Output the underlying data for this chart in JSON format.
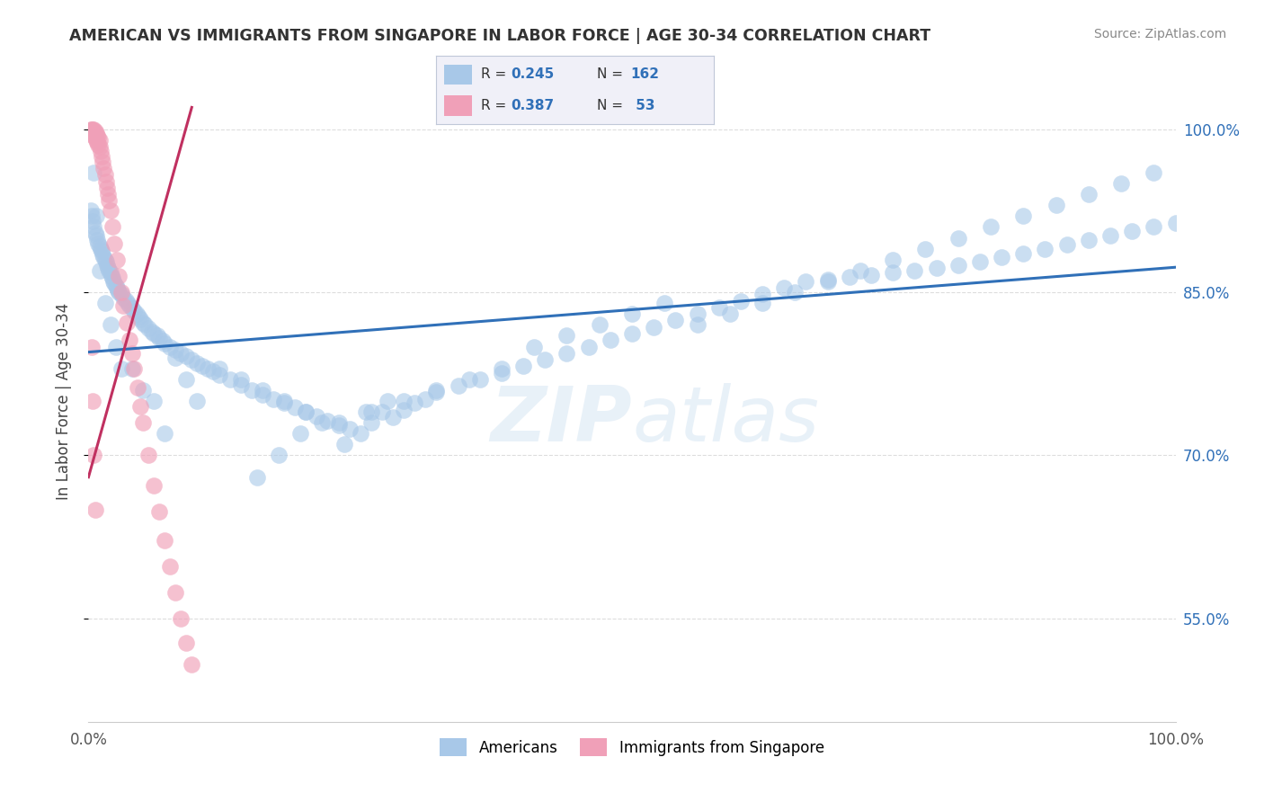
{
  "title": "AMERICAN VS IMMIGRANTS FROM SINGAPORE IN LABOR FORCE | AGE 30-34 CORRELATION CHART",
  "source": "Source: ZipAtlas.com",
  "ylabel": "In Labor Force | Age 30-34",
  "yright_labels": [
    "55.0%",
    "70.0%",
    "85.0%",
    "100.0%"
  ],
  "yright_values": [
    0.55,
    0.7,
    0.85,
    1.0
  ],
  "xlim": [
    0.0,
    1.0
  ],
  "ylim": [
    0.455,
    1.045
  ],
  "color_american": "#a8c8e8",
  "color_singapore": "#f0a0b8",
  "line_color_american": "#3070b8",
  "line_color_singapore": "#c03060",
  "watermark": "ZIPAtlas",
  "background_color": "#ffffff",
  "grid_color": "#dddddd",
  "legend_bg": "#f0f0f8",
  "legend_border": "#c0c8d8",
  "american_x": [
    0.002,
    0.003,
    0.004,
    0.005,
    0.006,
    0.007,
    0.008,
    0.009,
    0.01,
    0.011,
    0.012,
    0.013,
    0.014,
    0.015,
    0.016,
    0.017,
    0.018,
    0.019,
    0.02,
    0.021,
    0.022,
    0.023,
    0.024,
    0.025,
    0.026,
    0.027,
    0.028,
    0.03,
    0.032,
    0.034,
    0.036,
    0.038,
    0.04,
    0.042,
    0.044,
    0.046,
    0.048,
    0.05,
    0.052,
    0.055,
    0.058,
    0.06,
    0.063,
    0.065,
    0.068,
    0.07,
    0.075,
    0.08,
    0.085,
    0.09,
    0.095,
    0.1,
    0.105,
    0.11,
    0.115,
    0.12,
    0.13,
    0.14,
    0.15,
    0.16,
    0.17,
    0.18,
    0.19,
    0.2,
    0.21,
    0.22,
    0.23,
    0.24,
    0.25,
    0.26,
    0.27,
    0.28,
    0.29,
    0.3,
    0.31,
    0.32,
    0.34,
    0.36,
    0.38,
    0.4,
    0.42,
    0.44,
    0.46,
    0.48,
    0.5,
    0.52,
    0.54,
    0.56,
    0.58,
    0.6,
    0.62,
    0.64,
    0.66,
    0.68,
    0.7,
    0.72,
    0.74,
    0.76,
    0.78,
    0.8,
    0.82,
    0.84,
    0.86,
    0.88,
    0.9,
    0.92,
    0.94,
    0.96,
    0.98,
    1.0,
    0.005,
    0.007,
    0.01,
    0.015,
    0.02,
    0.025,
    0.03,
    0.04,
    0.05,
    0.06,
    0.07,
    0.08,
    0.09,
    0.1,
    0.12,
    0.14,
    0.16,
    0.18,
    0.2,
    0.23,
    0.26,
    0.29,
    0.32,
    0.35,
    0.38,
    0.41,
    0.44,
    0.47,
    0.5,
    0.53,
    0.56,
    0.59,
    0.62,
    0.65,
    0.68,
    0.71,
    0.74,
    0.77,
    0.8,
    0.83,
    0.86,
    0.89,
    0.92,
    0.95,
    0.98,
    0.155,
    0.175,
    0.195,
    0.215,
    0.235,
    0.255,
    0.275
  ],
  "american_y": [
    0.925,
    0.92,
    0.915,
    0.91,
    0.905,
    0.902,
    0.898,
    0.895,
    0.892,
    0.89,
    0.888,
    0.885,
    0.882,
    0.88,
    0.878,
    0.875,
    0.872,
    0.87,
    0.868,
    0.865,
    0.863,
    0.86,
    0.858,
    0.856,
    0.854,
    0.852,
    0.85,
    0.848,
    0.845,
    0.843,
    0.84,
    0.838,
    0.835,
    0.833,
    0.83,
    0.828,
    0.825,
    0.822,
    0.82,
    0.817,
    0.814,
    0.812,
    0.81,
    0.808,
    0.805,
    0.803,
    0.8,
    0.797,
    0.794,
    0.791,
    0.788,
    0.785,
    0.782,
    0.78,
    0.777,
    0.774,
    0.77,
    0.765,
    0.76,
    0.756,
    0.752,
    0.748,
    0.744,
    0.74,
    0.736,
    0.732,
    0.728,
    0.724,
    0.72,
    0.73,
    0.74,
    0.735,
    0.742,
    0.748,
    0.752,
    0.758,
    0.764,
    0.77,
    0.776,
    0.782,
    0.788,
    0.794,
    0.8,
    0.806,
    0.812,
    0.818,
    0.824,
    0.83,
    0.836,
    0.842,
    0.848,
    0.854,
    0.86,
    0.862,
    0.864,
    0.866,
    0.868,
    0.87,
    0.872,
    0.875,
    0.878,
    0.882,
    0.886,
    0.89,
    0.894,
    0.898,
    0.902,
    0.906,
    0.91,
    0.914,
    0.96,
    0.92,
    0.87,
    0.84,
    0.82,
    0.8,
    0.78,
    0.78,
    0.76,
    0.75,
    0.72,
    0.79,
    0.77,
    0.75,
    0.78,
    0.77,
    0.76,
    0.75,
    0.74,
    0.73,
    0.74,
    0.75,
    0.76,
    0.77,
    0.78,
    0.8,
    0.81,
    0.82,
    0.83,
    0.84,
    0.82,
    0.83,
    0.84,
    0.85,
    0.86,
    0.87,
    0.88,
    0.89,
    0.9,
    0.91,
    0.92,
    0.93,
    0.94,
    0.95,
    0.96,
    0.68,
    0.7,
    0.72,
    0.73,
    0.71,
    0.74,
    0.75
  ],
  "singapore_x": [
    0.002,
    0.003,
    0.003,
    0.004,
    0.004,
    0.005,
    0.005,
    0.006,
    0.006,
    0.007,
    0.007,
    0.008,
    0.008,
    0.009,
    0.009,
    0.01,
    0.01,
    0.011,
    0.012,
    0.013,
    0.014,
    0.015,
    0.016,
    0.017,
    0.018,
    0.019,
    0.02,
    0.022,
    0.024,
    0.026,
    0.028,
    0.03,
    0.032,
    0.035,
    0.038,
    0.04,
    0.042,
    0.045,
    0.048,
    0.05,
    0.055,
    0.06,
    0.065,
    0.07,
    0.075,
    0.08,
    0.085,
    0.09,
    0.095,
    0.003,
    0.004,
    0.005,
    0.006
  ],
  "singapore_y": [
    1.0,
    1.0,
    0.998,
    1.0,
    0.996,
    1.0,
    0.994,
    0.998,
    0.992,
    0.996,
    0.99,
    0.994,
    0.988,
    0.992,
    0.986,
    0.99,
    0.984,
    0.98,
    0.975,
    0.97,
    0.964,
    0.958,
    0.952,
    0.946,
    0.94,
    0.934,
    0.925,
    0.91,
    0.895,
    0.88,
    0.865,
    0.85,
    0.838,
    0.822,
    0.806,
    0.794,
    0.78,
    0.762,
    0.745,
    0.73,
    0.7,
    0.672,
    0.648,
    0.622,
    0.598,
    0.574,
    0.55,
    0.528,
    0.508,
    0.8,
    0.75,
    0.7,
    0.65
  ],
  "line_am_x0": 0.0,
  "line_am_x1": 1.0,
  "line_am_y0": 0.795,
  "line_am_y1": 0.873,
  "line_sg_x0": 0.0,
  "line_sg_x1": 0.095,
  "line_sg_y0": 0.68,
  "line_sg_y1": 1.02
}
